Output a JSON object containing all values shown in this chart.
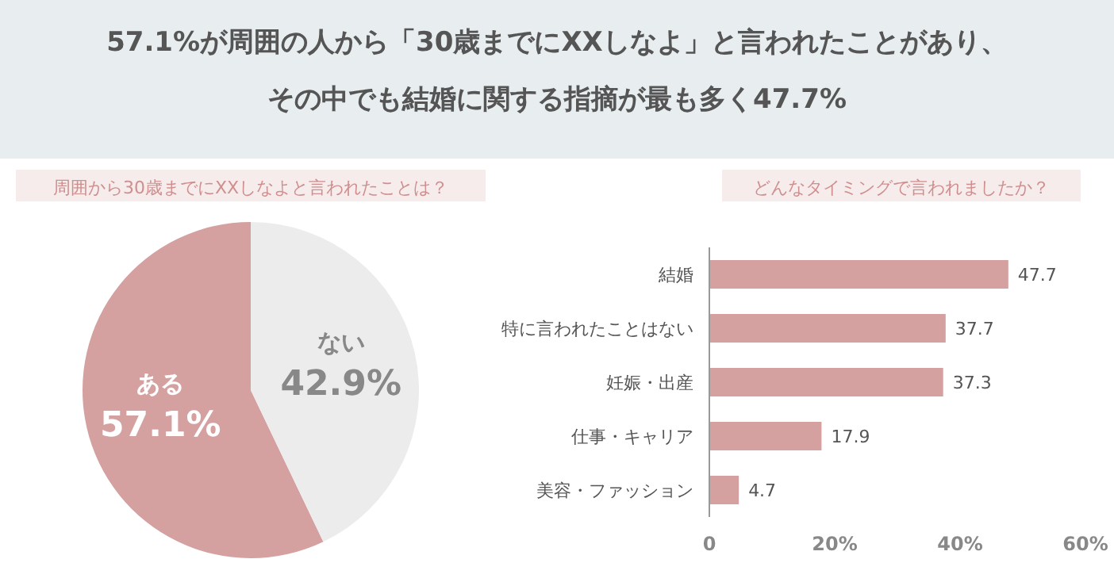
{
  "chart_data": [
    {
      "type": "other",
      "title": "57.1%が周囲の人から「30歳までにXXしなよ」と言われたことがあり、",
      "subtitle": "その中でも結婚に関する指摘が最も多く47.7%"
    },
    {
      "type": "pie",
      "title": "周囲から30歳までにXXしなよと言われたことは？",
      "categories": [
        "ある",
        "ない"
      ],
      "values": [
        57.1,
        42.9
      ],
      "colors": [
        "#d4a0a0",
        "#ececec"
      ],
      "value_labels": [
        "57.1%",
        "42.9%"
      ]
    },
    {
      "type": "bar",
      "orientation": "horizontal",
      "title": "どんなタイミングで言われましたか？",
      "categories": [
        "結婚",
        "特に言われたことはない",
        "妊娠・出産",
        "仕事・キャリア",
        "美容・ファッション"
      ],
      "values": [
        47.7,
        37.7,
        37.3,
        17.9,
        4.7
      ],
      "color": "#d4a0a0",
      "xlim": [
        0,
        60
      ],
      "xticks": [
        0,
        {
          "value": 20,
          "label": "20%"
        },
        {
          "value": 40,
          "label": "40%"
        },
        {
          "value": 60,
          "label": "60%"
        }
      ],
      "data_labels": true,
      "grid": false
    }
  ]
}
